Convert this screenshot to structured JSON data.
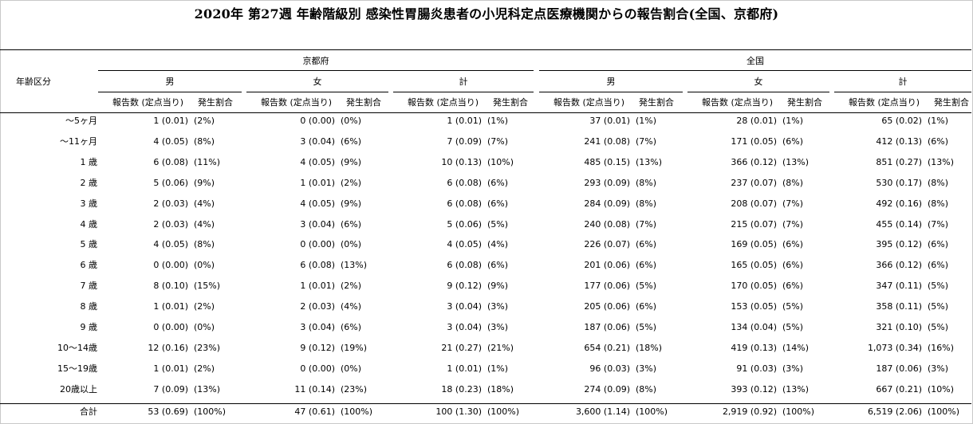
{
  "title": "2020年 第27週 年齢階級別 感染性胃腸炎患者の小児科定点医療機関からの報告割合(全国、京都府)",
  "row_header": "年齢区分",
  "regions": [
    "京都府",
    "全国"
  ],
  "sexes": [
    "男",
    "女",
    "計"
  ],
  "sub_headers": {
    "count": "報告数 (定点当り)",
    "rate": "発生割合"
  },
  "rows": [
    {
      "label": "～5ヶ月",
      "cells": [
        [
          "1 (0.01)",
          "(2%)"
        ],
        [
          "0 (0.00)",
          "(0%)"
        ],
        [
          "1 (0.01)",
          "(1%)"
        ],
        [
          "37 (0.01)",
          "(1%)"
        ],
        [
          "28 (0.01)",
          "(1%)"
        ],
        [
          "65 (0.02)",
          "(1%)"
        ]
      ]
    },
    {
      "label": "～11ヶ月",
      "cells": [
        [
          "4 (0.05)",
          "(8%)"
        ],
        [
          "3 (0.04)",
          "(6%)"
        ],
        [
          "7 (0.09)",
          "(7%)"
        ],
        [
          "241 (0.08)",
          "(7%)"
        ],
        [
          "171 (0.05)",
          "(6%)"
        ],
        [
          "412 (0.13)",
          "(6%)"
        ]
      ]
    },
    {
      "label": "1 歳",
      "cells": [
        [
          "6 (0.08)",
          "(11%)"
        ],
        [
          "4 (0.05)",
          "(9%)"
        ],
        [
          "10 (0.13)",
          "(10%)"
        ],
        [
          "485 (0.15)",
          "(13%)"
        ],
        [
          "366 (0.12)",
          "(13%)"
        ],
        [
          "851 (0.27)",
          "(13%)"
        ]
      ]
    },
    {
      "label": "2 歳",
      "cells": [
        [
          "5 (0.06)",
          "(9%)"
        ],
        [
          "1 (0.01)",
          "(2%)"
        ],
        [
          "6 (0.08)",
          "(6%)"
        ],
        [
          "293 (0.09)",
          "(8%)"
        ],
        [
          "237 (0.07)",
          "(8%)"
        ],
        [
          "530 (0.17)",
          "(8%)"
        ]
      ]
    },
    {
      "label": "3 歳",
      "cells": [
        [
          "2 (0.03)",
          "(4%)"
        ],
        [
          "4 (0.05)",
          "(9%)"
        ],
        [
          "6 (0.08)",
          "(6%)"
        ],
        [
          "284 (0.09)",
          "(8%)"
        ],
        [
          "208 (0.07)",
          "(7%)"
        ],
        [
          "492 (0.16)",
          "(8%)"
        ]
      ]
    },
    {
      "label": "4 歳",
      "cells": [
        [
          "2 (0.03)",
          "(4%)"
        ],
        [
          "3 (0.04)",
          "(6%)"
        ],
        [
          "5 (0.06)",
          "(5%)"
        ],
        [
          "240 (0.08)",
          "(7%)"
        ],
        [
          "215 (0.07)",
          "(7%)"
        ],
        [
          "455 (0.14)",
          "(7%)"
        ]
      ]
    },
    {
      "label": "5 歳",
      "cells": [
        [
          "4 (0.05)",
          "(8%)"
        ],
        [
          "0 (0.00)",
          "(0%)"
        ],
        [
          "4 (0.05)",
          "(4%)"
        ],
        [
          "226 (0.07)",
          "(6%)"
        ],
        [
          "169 (0.05)",
          "(6%)"
        ],
        [
          "395 (0.12)",
          "(6%)"
        ]
      ]
    },
    {
      "label": "6 歳",
      "cells": [
        [
          "0 (0.00)",
          "(0%)"
        ],
        [
          "6 (0.08)",
          "(13%)"
        ],
        [
          "6 (0.08)",
          "(6%)"
        ],
        [
          "201 (0.06)",
          "(6%)"
        ],
        [
          "165 (0.05)",
          "(6%)"
        ],
        [
          "366 (0.12)",
          "(6%)"
        ]
      ]
    },
    {
      "label": "7 歳",
      "cells": [
        [
          "8 (0.10)",
          "(15%)"
        ],
        [
          "1 (0.01)",
          "(2%)"
        ],
        [
          "9 (0.12)",
          "(9%)"
        ],
        [
          "177 (0.06)",
          "(5%)"
        ],
        [
          "170 (0.05)",
          "(6%)"
        ],
        [
          "347 (0.11)",
          "(5%)"
        ]
      ]
    },
    {
      "label": "8 歳",
      "cells": [
        [
          "1 (0.01)",
          "(2%)"
        ],
        [
          "2 (0.03)",
          "(4%)"
        ],
        [
          "3 (0.04)",
          "(3%)"
        ],
        [
          "205 (0.06)",
          "(6%)"
        ],
        [
          "153 (0.05)",
          "(5%)"
        ],
        [
          "358 (0.11)",
          "(5%)"
        ]
      ]
    },
    {
      "label": "9 歳",
      "cells": [
        [
          "0 (0.00)",
          "(0%)"
        ],
        [
          "3 (0.04)",
          "(6%)"
        ],
        [
          "3 (0.04)",
          "(3%)"
        ],
        [
          "187 (0.06)",
          "(5%)"
        ],
        [
          "134 (0.04)",
          "(5%)"
        ],
        [
          "321 (0.10)",
          "(5%)"
        ]
      ]
    },
    {
      "label": "10～14歳",
      "cells": [
        [
          "12 (0.16)",
          "(23%)"
        ],
        [
          "9 (0.12)",
          "(19%)"
        ],
        [
          "21 (0.27)",
          "(21%)"
        ],
        [
          "654 (0.21)",
          "(18%)"
        ],
        [
          "419 (0.13)",
          "(14%)"
        ],
        [
          "1,073 (0.34)",
          "(16%)"
        ]
      ]
    },
    {
      "label": "15～19歳",
      "cells": [
        [
          "1 (0.01)",
          "(2%)"
        ],
        [
          "0 (0.00)",
          "(0%)"
        ],
        [
          "1 (0.01)",
          "(1%)"
        ],
        [
          "96 (0.03)",
          "(3%)"
        ],
        [
          "91 (0.03)",
          "(3%)"
        ],
        [
          "187 (0.06)",
          "(3%)"
        ]
      ]
    },
    {
      "label": "20歳以上",
      "cells": [
        [
          "7 (0.09)",
          "(13%)"
        ],
        [
          "11 (0.14)",
          "(23%)"
        ],
        [
          "18 (0.23)",
          "(18%)"
        ],
        [
          "274 (0.09)",
          "(8%)"
        ],
        [
          "393 (0.12)",
          "(13%)"
        ],
        [
          "667 (0.21)",
          "(10%)"
        ]
      ]
    }
  ],
  "total": {
    "label": "合計",
    "cells": [
      [
        "53 (0.69)",
        "(100%)"
      ],
      [
        "47 (0.61)",
        "(100%)"
      ],
      [
        "100 (1.30)",
        "(100%)"
      ],
      [
        "3,600 (1.14)",
        "(100%)"
      ],
      [
        "2,919 (0.92)",
        "(100%)"
      ],
      [
        "6,519 (2.06)",
        "(100%)"
      ]
    ]
  }
}
